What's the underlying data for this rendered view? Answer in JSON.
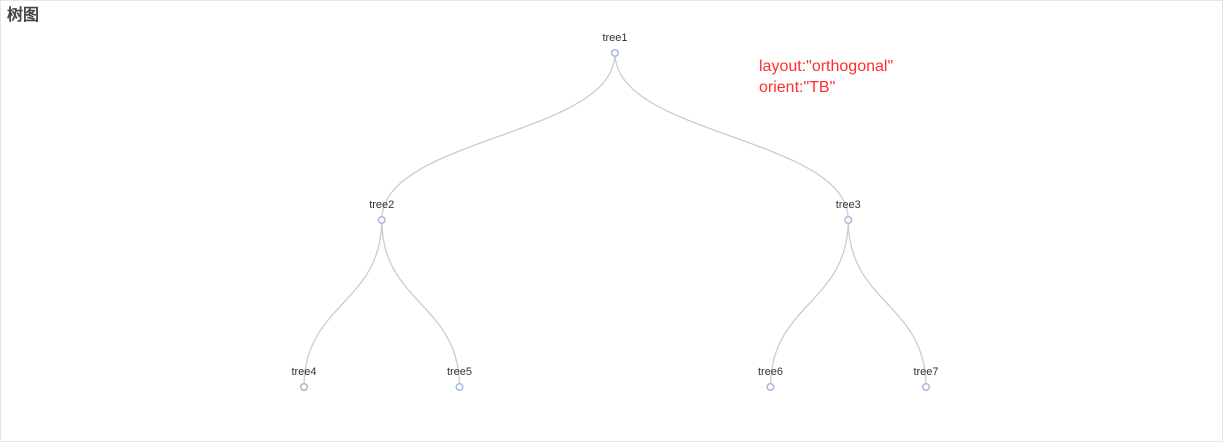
{
  "title": "树图",
  "annotation": {
    "layout_line": "layout:\"orthogonal\"",
    "orient_line": "orient:\"TB\""
  },
  "colors": {
    "link": "#cccccc",
    "node_stroke": "#a9bedb",
    "node_fill": "#ffffff",
    "annotation": "#ff2d2d",
    "title": "#464646"
  },
  "tree": {
    "name": "tree1",
    "children": [
      {
        "name": "tree2",
        "children": [
          {
            "name": "tree4",
            "children": []
          },
          {
            "name": "tree5",
            "children": []
          }
        ]
      },
      {
        "name": "tree3",
        "children": [
          {
            "name": "tree6",
            "children": []
          },
          {
            "name": "tree7",
            "children": []
          }
        ]
      }
    ]
  }
}
